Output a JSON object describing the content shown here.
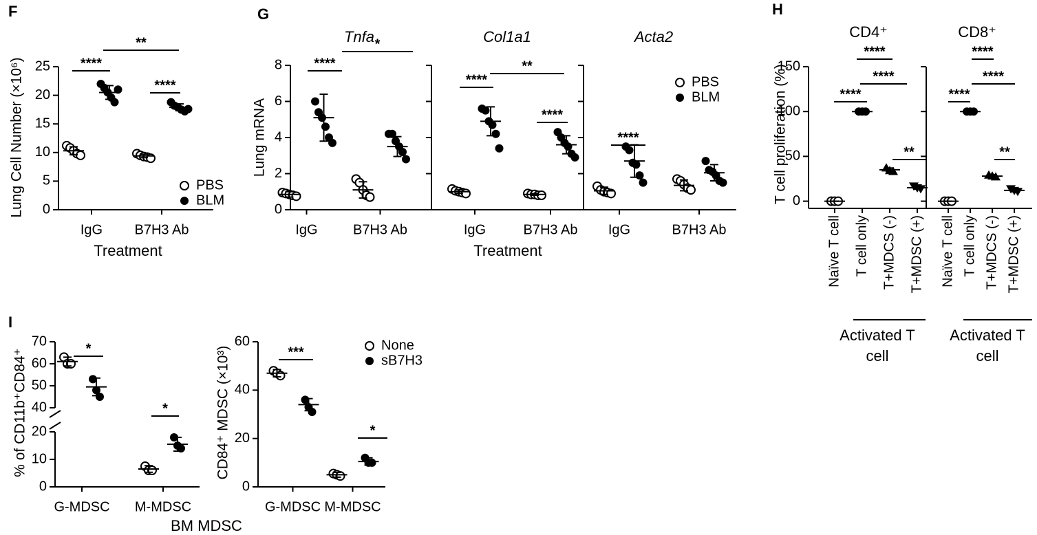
{
  "chart_data": [
    {
      "type": "dot",
      "panel": "F",
      "ylabel": "Lung Cell Number (×10⁶)",
      "xlabel": "Treatment",
      "categories": [
        "IgG",
        "B7H3 Ab"
      ],
      "ylim": [
        0,
        25
      ],
      "yticks": [
        0,
        5,
        10,
        15,
        20,
        25
      ],
      "legend": "lower right",
      "series": [
        {
          "name": "PBS",
          "marker": "open-circle",
          "points": [
            [
              11.2,
              10.8,
              10.3,
              9.8,
              9.5
            ],
            [
              9.8,
              9.5,
              9.3,
              9.2,
              9.0
            ]
          ],
          "mean": [
            10.3,
            9.4
          ],
          "sd": [
            0.7,
            0.3
          ]
        },
        {
          "name": "BLM",
          "marker": "circle",
          "points": [
            [
              22,
              21.3,
              20.5,
              19.6,
              18.8,
              21.0
            ],
            [
              18.8,
              18.2,
              17.9,
              17.5,
              17.2,
              17.6
            ]
          ],
          "mean": [
            20.5,
            17.9
          ],
          "sd": [
            1.2,
            0.6
          ]
        }
      ],
      "significance": [
        "****",
        "****",
        "**"
      ]
    },
    {
      "type": "dot",
      "panel": "G",
      "title": "Tnfa",
      "ylabel": "Lung mRNA",
      "categories": [
        "IgG",
        "B7H3 Ab"
      ],
      "ylim": [
        0,
        8
      ],
      "yticks": [
        0,
        2,
        4,
        6,
        8
      ],
      "series": [
        {
          "name": "PBS",
          "marker": "open-circle",
          "points": [
            [
              0.95,
              0.9,
              0.85,
              0.8,
              0.75
            ],
            [
              1.7,
              1.5,
              1.1,
              0.8,
              0.7
            ]
          ],
          "mean": [
            0.85,
            1.1
          ],
          "sd": [
            0.15,
            0.45
          ]
        },
        {
          "name": "BLM",
          "marker": "circle",
          "points": [
            [
              6.0,
              5.4,
              5.1,
              4.6,
              4.0,
              3.7
            ],
            [
              4.2,
              4.2,
              3.8,
              3.5,
              3.2,
              2.8
            ]
          ],
          "mean": [
            5.1,
            3.5
          ],
          "sd": [
            1.3,
            0.55
          ]
        }
      ],
      "significance": [
        "****",
        "*"
      ]
    },
    {
      "type": "dot",
      "title": "Col1a1",
      "xlabel": "Treatment",
      "categories": [
        "IgG",
        "B7H3 Ab"
      ],
      "ylim": [
        0,
        8
      ],
      "yticks": [
        0,
        2,
        4,
        6,
        8
      ],
      "series": [
        {
          "name": "PBS",
          "marker": "open-circle",
          "points": [
            [
              1.15,
              1.05,
              1.0,
              0.95,
              0.9
            ],
            [
              0.9,
              0.85,
              0.85,
              0.8,
              0.8
            ]
          ],
          "mean": [
            1.0,
            0.85
          ],
          "sd": [
            0.1,
            0.05
          ]
        },
        {
          "name": "BLM",
          "marker": "circle",
          "points": [
            [
              5.6,
              5.5,
              4.9,
              4.7,
              4.2,
              3.4
            ],
            [
              4.3,
              4.0,
              3.7,
              3.5,
              3.1,
              2.9
            ]
          ],
          "mean": [
            4.9,
            3.6
          ],
          "sd": [
            0.8,
            0.5
          ]
        }
      ],
      "significance": [
        "****",
        "****",
        "**"
      ]
    },
    {
      "type": "dot",
      "title": "Acta2",
      "categories": [
        "IgG",
        "B7H3 Ab"
      ],
      "ylim": [
        0,
        8
      ],
      "yticks": [
        0,
        2,
        4,
        6,
        8
      ],
      "legend": "upper right",
      "series": [
        {
          "name": "PBS",
          "marker": "open-circle",
          "points": [
            [
              1.3,
              1.1,
              1.0,
              0.95,
              0.9
            ],
            [
              1.7,
              1.6,
              1.4,
              1.2,
              1.1
            ]
          ],
          "mean": [
            1.05,
            1.35
          ],
          "sd": [
            0.2,
            0.3
          ]
        },
        {
          "name": "BLM",
          "marker": "circle",
          "points": [
            [
              3.5,
              3.3,
              2.6,
              2.5,
              1.9,
              1.5
            ],
            [
              2.7,
              2.2,
              2.1,
              1.9,
              1.6,
              1.5
            ]
          ],
          "mean": [
            2.7,
            2.05
          ],
          "sd": [
            0.9,
            0.45
          ]
        }
      ],
      "significance": [
        "****"
      ]
    },
    {
      "type": "dot",
      "panel": "H",
      "title": "CD4⁺",
      "ylabel": "T cell proliferation (%)",
      "categories": [
        "Naïve T cell",
        "T cell only",
        "T+MDCS (-)",
        "T+MDSC (+)"
      ],
      "group_label": "Activated T cell",
      "ylim": [
        -8,
        150
      ],
      "yticks": [
        0,
        50,
        100,
        150
      ],
      "series": [
        {
          "marker": [
            "open-circle",
            "circle",
            "triangle",
            "triangle-down"
          ],
          "points": [
            [
              0,
              0,
              0
            ],
            [
              100,
              100,
              100
            ],
            [
              37,
              34,
              33
            ],
            [
              17,
              15,
              14
            ]
          ],
          "mean": [
            0,
            100,
            35,
            15
          ],
          "sd": [
            0,
            0.5,
            2,
            1.5
          ]
        }
      ],
      "significance": [
        "****",
        "****",
        "****",
        "**"
      ]
    },
    {
      "type": "dot",
      "title": "CD8⁺",
      "categories": [
        "Naïve T cell",
        "T cell only",
        "T+MDCS (-)",
        "T+MDSC (+)"
      ],
      "group_label": "Activated T cell",
      "ylim": [
        -8,
        150
      ],
      "yticks": [
        0,
        50,
        100,
        150
      ],
      "series": [
        {
          "marker": [
            "open-circle",
            "circle",
            "triangle",
            "triangle-down"
          ],
          "points": [
            [
              0,
              0,
              0
            ],
            [
              100,
              100,
              100
            ],
            [
              29,
              28,
              27
            ],
            [
              14,
              12,
              11
            ]
          ],
          "mean": [
            0,
            100,
            28,
            12
          ],
          "sd": [
            0,
            0.5,
            1.5,
            1.5
          ]
        }
      ],
      "significance": [
        "****",
        "****",
        "****",
        "**"
      ]
    },
    {
      "type": "dot",
      "panel": "I",
      "ylabel": "% of CD11b⁺CD84⁺",
      "xlabel": "BM MDSC",
      "categories": [
        "G-MDSC",
        "M-MDSC"
      ],
      "ylim": [
        0,
        70
      ],
      "ybreak": [
        20,
        40
      ],
      "yticks": [
        0,
        10,
        20,
        40,
        50,
        60,
        70
      ],
      "series": [
        {
          "name": "None",
          "marker": "open-circle",
          "points": [
            [
              63,
              60,
              60
            ],
            [
              7.5,
              6,
              6
            ]
          ],
          "mean": [
            61,
            6.5
          ],
          "sd": [
            2,
            1.2
          ]
        },
        {
          "name": "sB7H3",
          "marker": "circle",
          "points": [
            [
              53,
              48,
              45
            ],
            [
              18,
              15,
              14
            ]
          ],
          "mean": [
            49.5,
            15.5
          ],
          "sd": [
            4,
            2.5
          ]
        }
      ],
      "significance": [
        "*",
        "*"
      ]
    },
    {
      "type": "dot",
      "ylabel": "CD84⁺ MDSC (×10³)",
      "categories": [
        "G-MDSC",
        "M-MDSC"
      ],
      "ylim": [
        0,
        60
      ],
      "yticks": [
        0,
        20,
        40,
        60
      ],
      "legend": "upper right",
      "series": [
        {
          "name": "None",
          "marker": "open-circle",
          "points": [
            [
              48,
              47,
              46
            ],
            [
              5.5,
              5,
              4.5
            ]
          ],
          "mean": [
            47,
            5
          ],
          "sd": [
            1.5,
            1
          ]
        },
        {
          "name": "sB7H3",
          "marker": "circle",
          "points": [
            [
              36,
              33,
              31
            ],
            [
              12,
              10,
              10
            ]
          ],
          "mean": [
            34,
            10.5
          ],
          "sd": [
            2.5,
            1.5
          ]
        }
      ],
      "significance": [
        "***",
        "*"
      ]
    }
  ]
}
